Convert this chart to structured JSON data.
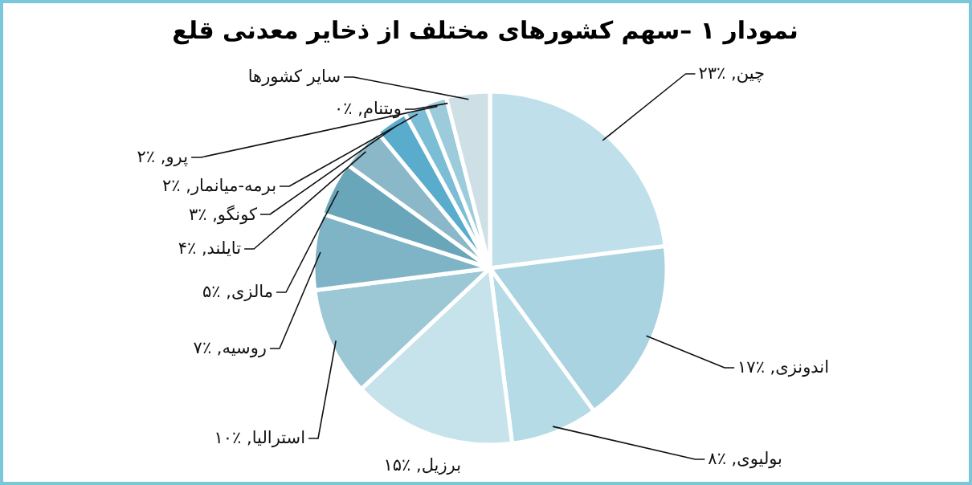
{
  "chart_data": {
    "type": "pie",
    "title": "نمودار ۱ –سهم کشورهای مختلف از ذخایر معدنی قلع",
    "categories": [
      "چین, ٪۲۳",
      "اندونزی, ٪۱۷",
      "بولیوی, ٪۸",
      "برزیل, ٪۱۵",
      "استرالیا, ٪۱۰",
      "روسیه, ٪۷",
      "مالزی, ٪۵",
      "تایلند, ٪۴",
      "کونگو, ٪۳",
      "برمه-میانمار, ٪۲",
      "پرو, ٪۲",
      "ویتنام, ٪۰",
      "سایر کشورها"
    ],
    "values": [
      23,
      17,
      8,
      15,
      10,
      7,
      5,
      4,
      3,
      2,
      2,
      0,
      4
    ],
    "colors": [
      "#bfe0ea",
      "#a9d3e0",
      "#b5dbe6",
      "#c6e3ec",
      "#9cc8d6",
      "#7fb4c6",
      "#6aa6ba",
      "#8ab8c8",
      "#5aaccc",
      "#7cbdd6",
      "#9ccbdc",
      "#c5d6de",
      "#cfdfe6"
    ]
  }
}
